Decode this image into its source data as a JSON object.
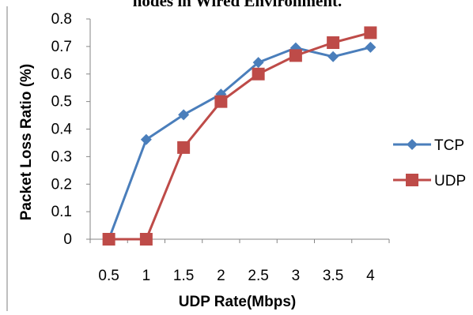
{
  "chart_data": {
    "type": "line",
    "title": "nodes in Wired Environment.",
    "xlabel": "UDP Rate(Mbps)",
    "ylabel": "Packet Loss Ratio (%)",
    "categories": [
      "0.5",
      "1",
      "1.5",
      "2",
      "2.5",
      "3",
      "3.5",
      "4"
    ],
    "yticks": [
      "0",
      "0.1",
      "0.2",
      "0.3",
      "0.4",
      "0.5",
      "0.6",
      "0.7",
      "0.8"
    ],
    "ylim": [
      0,
      0.8
    ],
    "grid": false,
    "legend_position": "right",
    "series": [
      {
        "name": "TCP",
        "color": "#4a7ebb",
        "marker": "diamond",
        "values": [
          0.0,
          0.362,
          0.452,
          0.527,
          0.642,
          0.695,
          0.663,
          0.697
        ]
      },
      {
        "name": "UDP",
        "color": "#be4b48",
        "marker": "square",
        "values": [
          0.0,
          0.0,
          0.333,
          0.5,
          0.6,
          0.667,
          0.714,
          0.75
        ]
      }
    ]
  }
}
